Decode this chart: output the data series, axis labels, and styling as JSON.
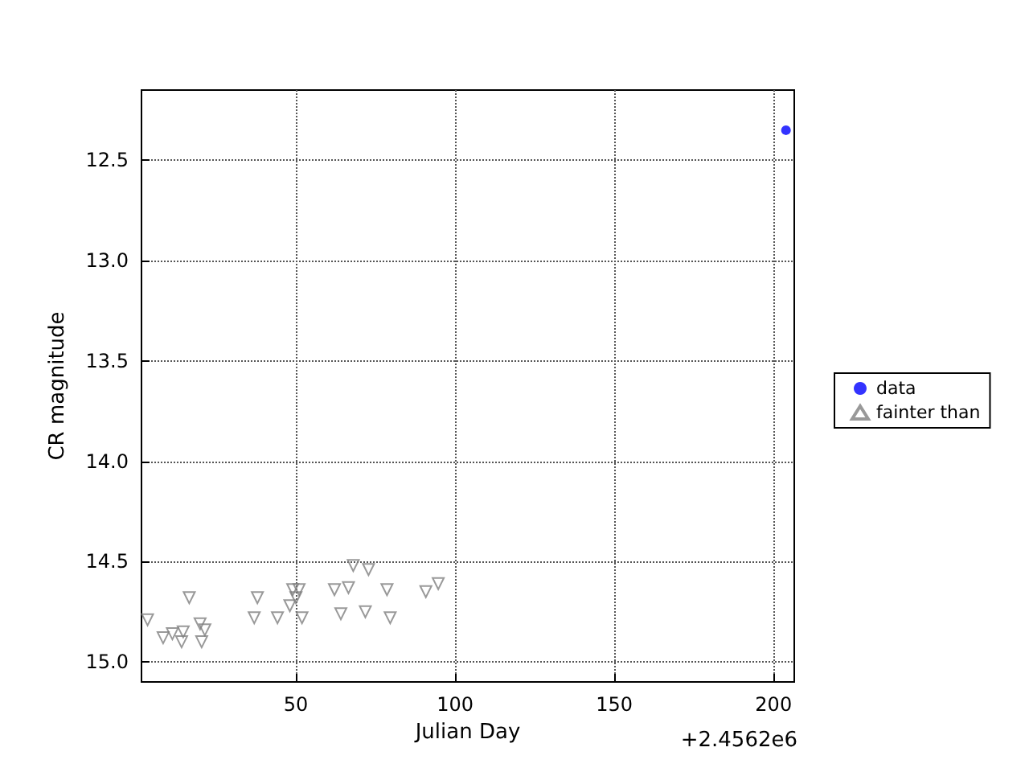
{
  "chart_data": {
    "type": "scatter",
    "xlabel": "Julian Day",
    "ylabel": "CR magnitude",
    "annotations": [
      "+2.4562e6"
    ],
    "xlim": [
      1.5,
      206.5
    ],
    "xticks": [
      50,
      100,
      150,
      200
    ],
    "ylim": [
      15.1,
      12.15
    ],
    "yticks": [
      {
        "value": 12.5,
        "label": "12.5"
      },
      {
        "value": 13,
        "label": "13.0"
      },
      {
        "value": 13.5,
        "label": "13.5"
      },
      {
        "value": 14,
        "label": "14.0"
      },
      {
        "value": 14.5,
        "label": "14.5"
      },
      {
        "value": 15,
        "label": "15.0"
      }
    ],
    "grid": true,
    "legend": "right",
    "series": [
      {
        "name": "data",
        "color": "#0000ff",
        "marker": "circle",
        "x": [
          203.9
        ],
        "values": [
          12.35
        ]
      },
      {
        "name": "fainter than",
        "color": "#808080",
        "marker": "triangle",
        "x": [
          3.4,
          8.3,
          11.2,
          14.1,
          14.6,
          16.5,
          19.9,
          20.4,
          21.4,
          36.9,
          37.9,
          44.2,
          48.1,
          49.0,
          50.0,
          51.0,
          51.9,
          62.1,
          64.1,
          66.5,
          68.0,
          71.8,
          72.8,
          78.6,
          79.6,
          90.8,
          94.7
        ],
        "values": [
          14.79,
          14.88,
          14.86,
          14.9,
          14.85,
          14.68,
          14.81,
          14.9,
          14.84,
          14.78,
          14.68,
          14.78,
          14.72,
          14.64,
          14.68,
          14.64,
          14.78,
          14.64,
          14.76,
          14.63,
          14.52,
          14.75,
          14.54,
          14.64,
          14.78,
          14.65,
          14.61
        ]
      }
    ]
  }
}
